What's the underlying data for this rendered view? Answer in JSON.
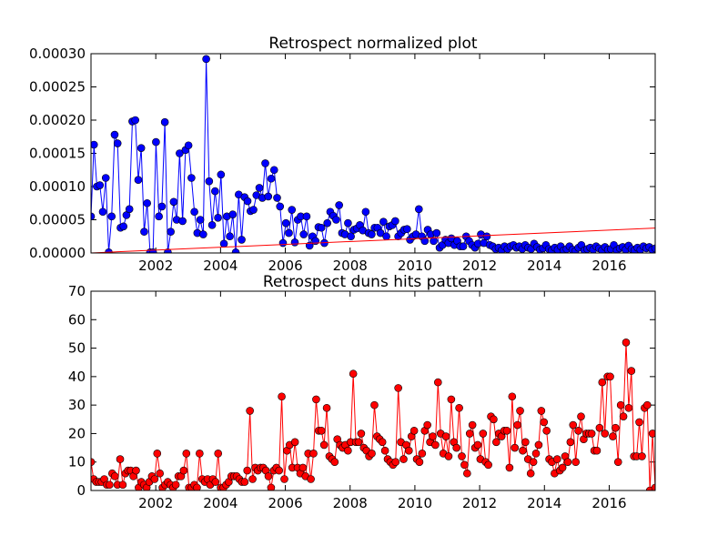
{
  "chart_data": [
    {
      "type": "line",
      "title": "Retrospect normalized plot",
      "xlabel": "",
      "ylabel": "",
      "xlim": [
        2000.0,
        2017.42
      ],
      "ylim": [
        0,
        0.0003
      ],
      "x_ticks": [
        "2002",
        "2004",
        "2006",
        "2008",
        "2010",
        "2012",
        "2014",
        "2016"
      ],
      "y_ticks": [
        "0.00000",
        "0.00005",
        "0.00010",
        "0.00015",
        "0.00020",
        "0.00025",
        "0.00030"
      ],
      "grid": false,
      "colors": {
        "line": "#0000ff",
        "marker": "#0000ff",
        "trend": "#ff0000"
      },
      "series": [
        {
          "style": "line-with-markers",
          "values": [
            5.5e-05,
            0.000163,
            0.0001,
            0.000102,
            6.2e-05,
            0.000113,
            1e-06,
            5.5e-05,
            0.000178,
            0.000165,
            3.8e-05,
            4e-05,
            5.7e-05,
            6.6e-05,
            0.000198,
            0.0002,
            0.00011,
            0.000158,
            3.2e-05,
            7.5e-05,
            1e-06,
            1e-06,
            0.000167,
            5.5e-05,
            7e-05,
            0.000197,
            1e-06,
            3.2e-05,
            7.7e-05,
            5e-05,
            0.00015,
            4.8e-05,
            0.000155,
            0.000162,
            0.000113,
            6.2e-05,
            3e-05,
            5e-05,
            2.8e-05,
            0.000292,
            0.000108,
            4.2e-05,
            9.3e-05,
            5.3e-05,
            0.000118,
            1.4e-05,
            5.5e-05,
            2.5e-05,
            5.8e-05,
            1e-06,
            8.8e-05,
            2e-05,
            8.4e-05,
            7.8e-05,
            6.3e-05,
            6.5e-05,
            8.7e-05,
            9.8e-05,
            8.3e-05,
            0.000135,
            8.5e-05,
            0.000112,
            0.000125,
            8.3e-05,
            7e-05,
            1.5e-05,
            4.5e-05,
            3e-05,
            6.5e-05,
            1.6e-05,
            5e-05,
            5.5e-05,
            2.8e-05,
            5.5e-05,
            1.1e-05,
            2.5e-05,
            1.8e-05,
            3.9e-05,
            3.8e-05,
            1.5e-05,
            4.5e-05,
            6.2e-05,
            5.6e-05,
            5e-05,
            7.2e-05,
            3e-05,
            2.8e-05,
            4.5e-05,
            2.5e-05,
            3.5e-05,
            3.7e-05,
            4.2e-05,
            3.4e-05,
            6.2e-05,
            3e-05,
            2.8e-05,
            3.8e-05,
            3.8e-05,
            3e-05,
            4.7e-05,
            2.5e-05,
            4e-05,
            4.2e-05,
            4.8e-05,
            2.5e-05,
            3e-05,
            3.5e-05,
            3.6e-05,
            2e-05,
            2.5e-05,
            2.8e-05,
            6.6e-05,
            2.5e-05,
            1.8e-05,
            3.5e-05,
            2.8e-05,
            1.8e-05,
            3e-05,
            8e-06,
            1.2e-05,
            2e-05,
            1.5e-05,
            2.2e-05,
            1.2e-05,
            1.8e-05,
            1e-05,
            1e-05,
            2.5e-05,
            1.8e-05,
            1.2e-05,
            8e-06,
            1.4e-05,
            2.8e-05,
            1.5e-05,
            2.5e-05,
            1.2e-05,
            1e-05,
            6e-06,
            8e-06,
            4e-06,
            1e-05,
            6e-06,
            1e-05,
            1.2e-05,
            8e-06,
            1e-05,
            6e-06,
            1.2e-05,
            8e-06,
            6e-06,
            1.4e-05,
            9e-06,
            5e-06,
            7e-06,
            1.2e-05,
            6e-06,
            4e-06,
            8e-06,
            5e-06,
            1e-05,
            4e-06,
            6e-06,
            1e-05,
            5e-06,
            3e-06,
            8e-06,
            1.2e-05,
            4e-06,
            6e-06,
            8e-06,
            5e-06,
            1e-05,
            7e-06,
            4e-06,
            9e-06,
            5e-06,
            6e-06,
            1.2e-05,
            4e-06,
            7e-06,
            9e-06,
            5e-06,
            1.1e-05,
            6e-06,
            4e-06,
            8e-06,
            5e-06,
            1e-05,
            7e-06,
            9e-06,
            5e-06,
            7e-06
          ]
        },
        {
          "style": "trend-line",
          "x": [
            2000.0,
            2017.42
          ],
          "values": [
            0.0,
            3.75e-05
          ]
        }
      ]
    },
    {
      "type": "line",
      "title": "Retrospect duns hits pattern",
      "xlabel": "",
      "ylabel": "",
      "xlim": [
        2000.0,
        2017.42
      ],
      "ylim": [
        0,
        70
      ],
      "x_ticks": [
        "2002",
        "2004",
        "2006",
        "2008",
        "2010",
        "2012",
        "2014",
        "2016"
      ],
      "y_ticks": [
        "0",
        "10",
        "20",
        "30",
        "40",
        "50",
        "60",
        "70"
      ],
      "grid": false,
      "colors": {
        "line": "#ff0000",
        "marker": "#ff0000"
      },
      "series": [
        {
          "style": "line-with-markers",
          "values": [
            10,
            4,
            3,
            3,
            3,
            4,
            2,
            2,
            6,
            5,
            2,
            11,
            2,
            6,
            7,
            7,
            5,
            7,
            1,
            3,
            2,
            1,
            3,
            5,
            4,
            13,
            6,
            1,
            2,
            3,
            2,
            1,
            2,
            5,
            5,
            7,
            13,
            1,
            1,
            2,
            1,
            13,
            4,
            3,
            4,
            2,
            4,
            3,
            13,
            1,
            1,
            2,
            3,
            5,
            5,
            5,
            4,
            3,
            3,
            7,
            28,
            4,
            8,
            7,
            8,
            8,
            7,
            5,
            1,
            7,
            8,
            7,
            33,
            4,
            14,
            16,
            8,
            17,
            8,
            6,
            8,
            5,
            13,
            4,
            13,
            32,
            21,
            21,
            16,
            29,
            12,
            11,
            10,
            18,
            16,
            15,
            16,
            14,
            17,
            41,
            17,
            17,
            20,
            15,
            14,
            12,
            13,
            30,
            19,
            18,
            17,
            14,
            11,
            10,
            9,
            10,
            36,
            17,
            11,
            16,
            14,
            19,
            21,
            11,
            10,
            13,
            21,
            23,
            17,
            19,
            16,
            38,
            20,
            13,
            19,
            12,
            32,
            17,
            15,
            29,
            12,
            9,
            6,
            20,
            23,
            15,
            16,
            11,
            20,
            10,
            9,
            26,
            25,
            17,
            20,
            19,
            21,
            21,
            8,
            33,
            15,
            23,
            28,
            14,
            17,
            11,
            6,
            10,
            13,
            16,
            28,
            24,
            21,
            11,
            10,
            6,
            11,
            7,
            8,
            12,
            10,
            17,
            23,
            10,
            21,
            26,
            18,
            20,
            20,
            20,
            14,
            14,
            22,
            38,
            20,
            40,
            40,
            19,
            22,
            10,
            30,
            26,
            52,
            29,
            42,
            12,
            12,
            24,
            12,
            29,
            30,
            0,
            20,
            1
          ]
        }
      ]
    }
  ]
}
